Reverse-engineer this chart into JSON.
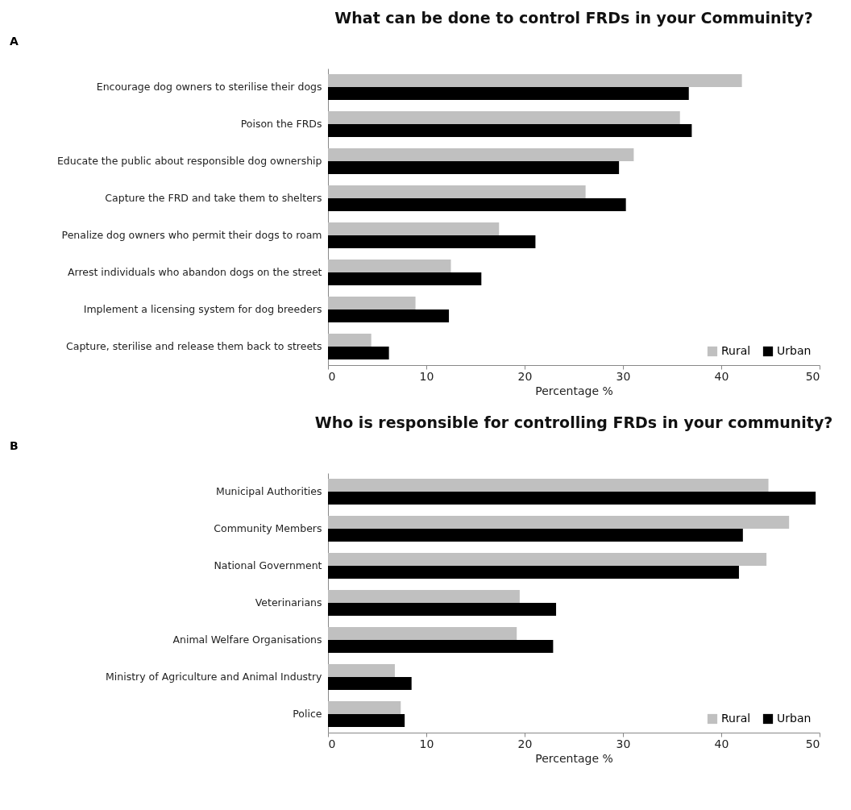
{
  "chart_data": [
    {
      "type": "bar",
      "orientation": "horizontal",
      "title": "What can be done to control FRDs in your Commuinity?",
      "xlabel": "Percentage %",
      "annotations": [
        "A"
      ],
      "categories": [
        "Encourage dog owners to sterilise their dogs ",
        "Poison the FRDs",
        "Educate the public about responsible dog ownership",
        "Capture the FRD and take them to shelters",
        "Penalize dog owners who permit their dogs to roam ",
        "Arrest individuals who abandon dogs on the street",
        "Implement a licensing system for dog breeders",
        "Capture, sterilise and release them back to streets"
      ],
      "series": [
        {
          "name": "Rural",
          "color": "#c0c0c0",
          "values": [
            42.1,
            35.8,
            31.1,
            26.2,
            17.4,
            12.5,
            8.9,
            4.4
          ]
        },
        {
          "name": "Urban",
          "color": "#000000",
          "values": [
            36.7,
            37.0,
            29.6,
            30.3,
            21.1,
            15.6,
            12.3,
            6.2
          ]
        }
      ],
      "xlim": [
        0,
        50
      ],
      "xticks": [
        0,
        10,
        20,
        30,
        40,
        50
      ],
      "legend": "bottom right",
      "grid": false
    },
    {
      "type": "bar",
      "orientation": "horizontal",
      "title": "Who is responsible for controlling FRDs in your community?",
      "xlabel": "Percentage %",
      "annotations": [
        "B"
      ],
      "categories": [
        "Municipal Authorities",
        "Community Members ",
        "National Government",
        "Veterinarians",
        "Animal Welfare Organisations ",
        "Ministry of Agriculture and Animal Industry",
        "Police"
      ],
      "series": [
        {
          "name": "Rural",
          "color": "#c0c0c0",
          "values": [
            44.8,
            46.9,
            44.6,
            19.5,
            19.2,
            6.8,
            7.4
          ]
        },
        {
          "name": "Urban",
          "color": "#000000",
          "values": [
            49.6,
            42.2,
            41.8,
            23.2,
            22.9,
            8.5,
            7.8
          ]
        }
      ],
      "xlim": [
        0,
        50
      ],
      "xticks": [
        0,
        10,
        20,
        30,
        40,
        50
      ],
      "legend": "bottom right",
      "grid": false
    }
  ]
}
